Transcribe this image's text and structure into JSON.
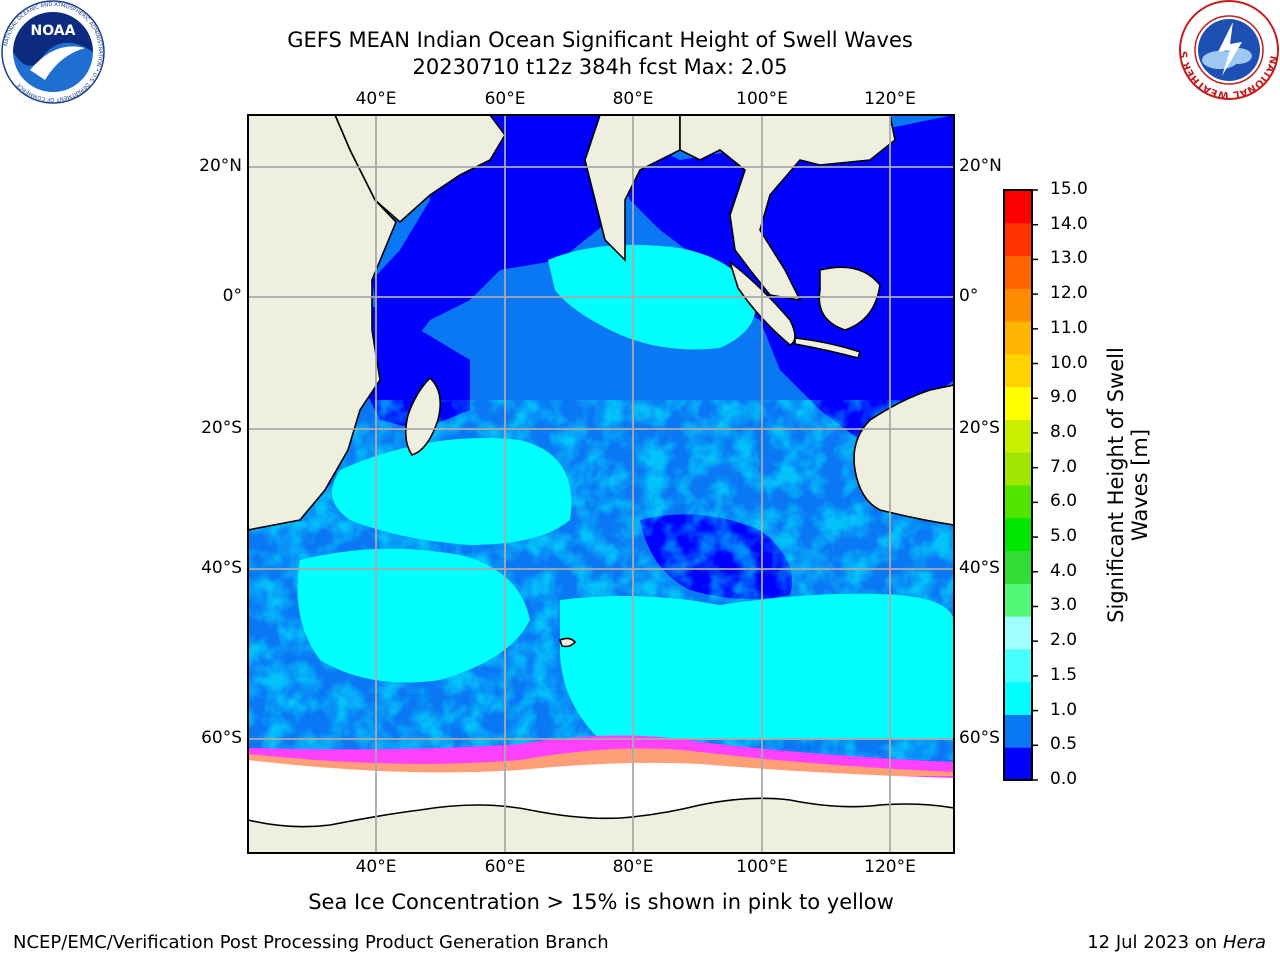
{
  "header": {
    "title_line1": "GEFS MEAN Indian Ocean Significant Height of Swell Waves",
    "title_line2": "20230710 t12z 384h fcst   Max: 2.05"
  },
  "logos": {
    "left": {
      "text": "NOAA",
      "ring_text": "NATIONAL OCEANIC AND ATMOSPHERIC ADMINISTRATION • U.S. DEPARTMENT OF COMMERCE",
      "icon": "noaa-logo"
    },
    "right": {
      "ring_text": "NATIONAL WEATHER SERVICE",
      "icon": "nws-logo"
    }
  },
  "map": {
    "lon_labels": [
      "40°E",
      "60°E",
      "80°E",
      "100°E",
      "120°E"
    ],
    "lat_labels": [
      "20°N",
      "0°",
      "20°S",
      "40°S",
      "60°S"
    ],
    "lon_range": [
      20,
      130
    ],
    "lat_range": [
      -68,
      28
    ],
    "land_color": "#efefdf",
    "ice_color": "#ffffff"
  },
  "colorbar": {
    "title": "Significant Height of Swell Waves [m]",
    "title_line1": "Significant Height of Swell",
    "title_line2": "Waves [m]",
    "ticks": [
      "0.0",
      "0.5",
      "1.0",
      "1.5",
      "2.0",
      "3.0",
      "4.0",
      "5.0",
      "6.0",
      "7.0",
      "8.0",
      "9.0",
      "10.0",
      "11.0",
      "12.0",
      "13.0",
      "14.0",
      "15.0"
    ],
    "colors": [
      "#0000ff",
      "#0a78f5",
      "#00ffff",
      "#46ffff",
      "#a0ffff",
      "#50fa78",
      "#32dc32",
      "#00e600",
      "#50e600",
      "#a0e600",
      "#c8f000",
      "#ffff00",
      "#ffd200",
      "#ffb400",
      "#ff8c00",
      "#ff6400",
      "#ff3200",
      "#ff0000"
    ]
  },
  "caption": "Sea Ice Concentration > 15% is shown in pink to yellow",
  "footer": {
    "left": "NCEP/EMC/Verification Post Processing Product Generation Branch",
    "right_date": "12 Jul 2023 on ",
    "right_host": "Hera"
  }
}
